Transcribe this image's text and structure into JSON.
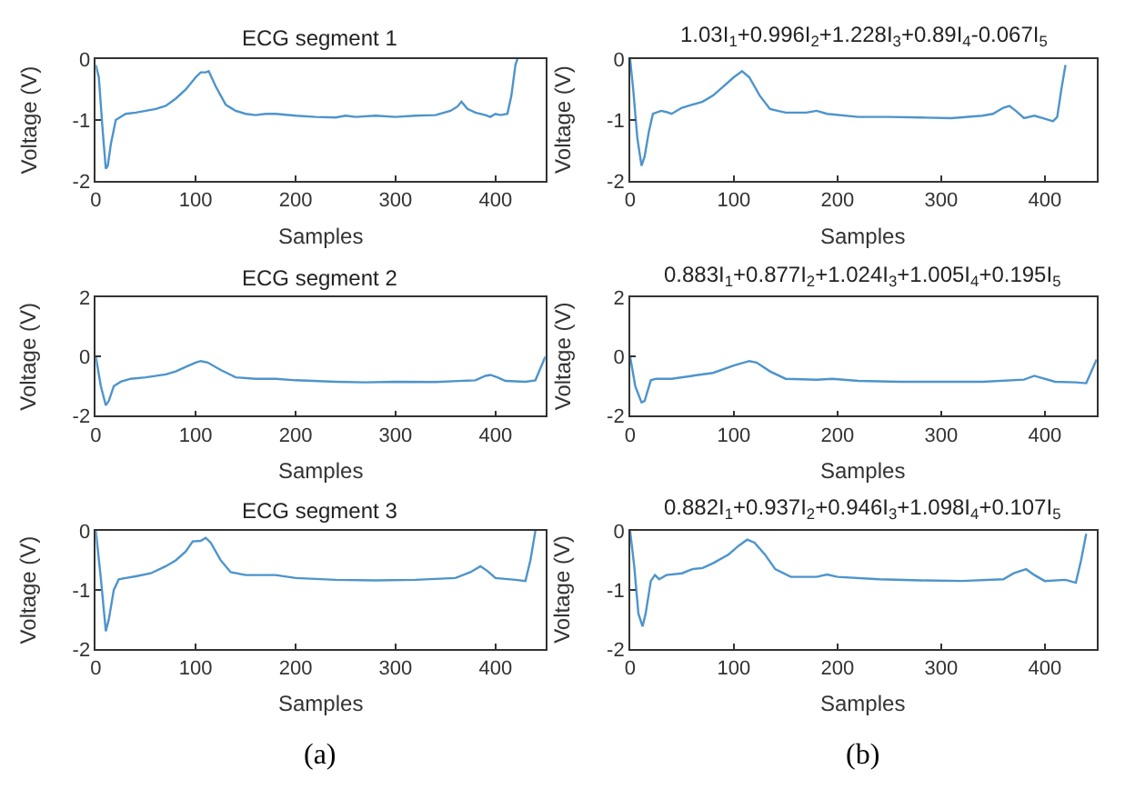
{
  "chart_data": [
    {
      "type": "line",
      "title": "ECG segment 1",
      "xlabel": "Samples",
      "ylabel": "Voltage (V)",
      "xlim": [
        0,
        450
      ],
      "ylim": [
        -2,
        0
      ],
      "xticks": [
        0,
        100,
        200,
        300,
        400
      ],
      "yticks": [
        -2,
        -1,
        0
      ],
      "series": [
        {
          "color": "#4d94cc",
          "x": [
            0,
            3,
            7,
            10,
            12,
            15,
            20,
            25,
            30,
            40,
            50,
            60,
            70,
            80,
            90,
            100,
            105,
            110,
            113,
            120,
            130,
            140,
            150,
            160,
            170,
            180,
            200,
            220,
            240,
            250,
            260,
            280,
            300,
            320,
            340,
            355,
            362,
            366,
            372,
            380,
            390,
            395,
            400,
            405,
            412,
            416,
            420,
            422
          ],
          "values": [
            -0.1,
            -0.3,
            -1.2,
            -1.8,
            -1.75,
            -1.4,
            -1.0,
            -0.95,
            -0.9,
            -0.88,
            -0.85,
            -0.82,
            -0.77,
            -0.65,
            -0.5,
            -0.3,
            -0.22,
            -0.22,
            -0.2,
            -0.45,
            -0.75,
            -0.85,
            -0.9,
            -0.92,
            -0.9,
            -0.9,
            -0.93,
            -0.95,
            -0.96,
            -0.93,
            -0.95,
            -0.93,
            -0.95,
            -0.93,
            -0.92,
            -0.85,
            -0.78,
            -0.7,
            -0.82,
            -0.88,
            -0.92,
            -0.95,
            -0.9,
            -0.92,
            -0.9,
            -0.6,
            -0.1,
            0
          ]
        }
      ]
    },
    {
      "type": "line",
      "title": "1.03I$_{1}$+0.996I$_{2}$+1.228I$_{3}$+0.89I$_{4}$-0.067I$_{5}$",
      "xlabel": "Samples",
      "ylabel": "Voltage (V)",
      "xlim": [
        0,
        450
      ],
      "ylim": [
        -2,
        0
      ],
      "xticks": [
        0,
        100,
        200,
        300,
        400
      ],
      "yticks": [
        -2,
        -1,
        0
      ],
      "series": [
        {
          "color": "#4d94cc",
          "x": [
            0,
            3,
            7,
            11,
            14,
            18,
            22,
            30,
            35,
            40,
            50,
            60,
            70,
            80,
            90,
            100,
            108,
            115,
            125,
            135,
            150,
            170,
            180,
            190,
            220,
            250,
            280,
            310,
            340,
            350,
            360,
            366,
            372,
            380,
            390,
            400,
            408,
            412,
            416,
            420
          ],
          "values": [
            0,
            -0.5,
            -1.3,
            -1.75,
            -1.6,
            -1.2,
            -0.9,
            -0.85,
            -0.87,
            -0.9,
            -0.8,
            -0.75,
            -0.7,
            -0.6,
            -0.45,
            -0.3,
            -0.2,
            -0.3,
            -0.6,
            -0.82,
            -0.88,
            -0.88,
            -0.85,
            -0.9,
            -0.95,
            -0.95,
            -0.96,
            -0.97,
            -0.93,
            -0.9,
            -0.8,
            -0.77,
            -0.85,
            -0.97,
            -0.93,
            -0.98,
            -1.02,
            -0.95,
            -0.5,
            -0.1
          ]
        }
      ]
    },
    {
      "type": "line",
      "title": "ECG segment 2",
      "xlabel": "Samples",
      "ylabel": "Voltage (V)",
      "xlim": [
        0,
        450
      ],
      "ylim": [
        -2,
        2
      ],
      "xticks": [
        0,
        100,
        200,
        300,
        400
      ],
      "yticks": [
        -2,
        0,
        2
      ],
      "series": [
        {
          "color": "#4d94cc",
          "x": [
            0,
            5,
            10,
            13,
            18,
            25,
            35,
            50,
            70,
            80,
            90,
            100,
            105,
            112,
            125,
            140,
            160,
            180,
            200,
            240,
            270,
            300,
            340,
            380,
            390,
            395,
            402,
            410,
            430,
            440,
            445,
            450
          ],
          "values": [
            0,
            -1.0,
            -1.65,
            -1.5,
            -1.0,
            -0.85,
            -0.75,
            -0.7,
            -0.6,
            -0.5,
            -0.35,
            -0.2,
            -0.15,
            -0.2,
            -0.45,
            -0.7,
            -0.75,
            -0.75,
            -0.8,
            -0.85,
            -0.87,
            -0.85,
            -0.86,
            -0.8,
            -0.65,
            -0.62,
            -0.7,
            -0.82,
            -0.85,
            -0.8,
            -0.4,
            0
          ]
        }
      ]
    },
    {
      "type": "line",
      "title": "0.883I$_{1}$+0.877I$_{2}$+1.024I$_{3}$+1.005I$_{4}$+0.195I$_{5}$",
      "xlabel": "Samples",
      "ylabel": "Voltage (V)",
      "xlim": [
        0,
        450
      ],
      "ylim": [
        -2,
        2
      ],
      "xticks": [
        0,
        100,
        200,
        300,
        400
      ],
      "yticks": [
        -2,
        0,
        2
      ],
      "series": [
        {
          "color": "#4d94cc",
          "x": [
            0,
            5,
            11,
            14,
            20,
            25,
            40,
            60,
            80,
            100,
            115,
            122,
            135,
            150,
            180,
            195,
            220,
            260,
            300,
            340,
            380,
            390,
            395,
            410,
            430,
            440,
            445,
            450
          ],
          "values": [
            0,
            -1.0,
            -1.55,
            -1.5,
            -0.8,
            -0.75,
            -0.75,
            -0.65,
            -0.55,
            -0.3,
            -0.15,
            -0.2,
            -0.5,
            -0.75,
            -0.78,
            -0.75,
            -0.82,
            -0.85,
            -0.85,
            -0.85,
            -0.78,
            -0.65,
            -0.7,
            -0.85,
            -0.87,
            -0.9,
            -0.5,
            -0.1
          ]
        }
      ]
    },
    {
      "type": "line",
      "title": "ECG segment 3",
      "xlabel": "Samples",
      "ylabel": "Voltage (V)",
      "xlim": [
        0,
        450
      ],
      "ylim": [
        -2,
        0
      ],
      "xticks": [
        0,
        100,
        200,
        300,
        400
      ],
      "yticks": [
        -2,
        -1,
        0
      ],
      "annotations": [
        "(a)"
      ],
      "series": [
        {
          "color": "#4d94cc",
          "x": [
            0,
            5,
            10,
            13,
            18,
            23,
            30,
            40,
            55,
            70,
            80,
            90,
            97,
            105,
            110,
            115,
            125,
            135,
            150,
            180,
            200,
            240,
            280,
            320,
            360,
            375,
            385,
            392,
            400,
            420,
            430,
            435,
            440
          ],
          "values": [
            0,
            -0.8,
            -1.7,
            -1.5,
            -1.0,
            -0.82,
            -0.8,
            -0.77,
            -0.72,
            -0.6,
            -0.5,
            -0.35,
            -0.18,
            -0.17,
            -0.12,
            -0.2,
            -0.5,
            -0.7,
            -0.75,
            -0.75,
            -0.8,
            -0.83,
            -0.84,
            -0.83,
            -0.8,
            -0.7,
            -0.6,
            -0.68,
            -0.8,
            -0.83,
            -0.85,
            -0.5,
            0
          ]
        }
      ]
    },
    {
      "type": "line",
      "title": "0.882I$_{1}$+0.937I$_{2}$+0.946I$_{3}$+1.098I$_{4}$+0.107I$_{5}$",
      "xlabel": "Samples",
      "ylabel": "Voltage (V)",
      "xlim": [
        0,
        450
      ],
      "ylim": [
        -2,
        0
      ],
      "xticks": [
        0,
        100,
        200,
        300,
        400
      ],
      "yticks": [
        -2,
        -1,
        0
      ],
      "annotations": [
        "(b)"
      ],
      "series": [
        {
          "color": "#4d94cc",
          "x": [
            0,
            4,
            8,
            12,
            15,
            20,
            24,
            28,
            35,
            50,
            60,
            70,
            80,
            95,
            105,
            113,
            120,
            130,
            140,
            155,
            180,
            190,
            200,
            240,
            280,
            320,
            360,
            370,
            382,
            390,
            400,
            420,
            430,
            435,
            440
          ],
          "values": [
            0,
            -0.6,
            -1.4,
            -1.62,
            -1.4,
            -0.85,
            -0.75,
            -0.82,
            -0.75,
            -0.72,
            -0.65,
            -0.63,
            -0.55,
            -0.4,
            -0.25,
            -0.15,
            -0.2,
            -0.4,
            -0.65,
            -0.78,
            -0.78,
            -0.74,
            -0.78,
            -0.82,
            -0.84,
            -0.85,
            -0.82,
            -0.72,
            -0.65,
            -0.75,
            -0.85,
            -0.83,
            -0.88,
            -0.5,
            -0.05
          ]
        }
      ]
    }
  ]
}
